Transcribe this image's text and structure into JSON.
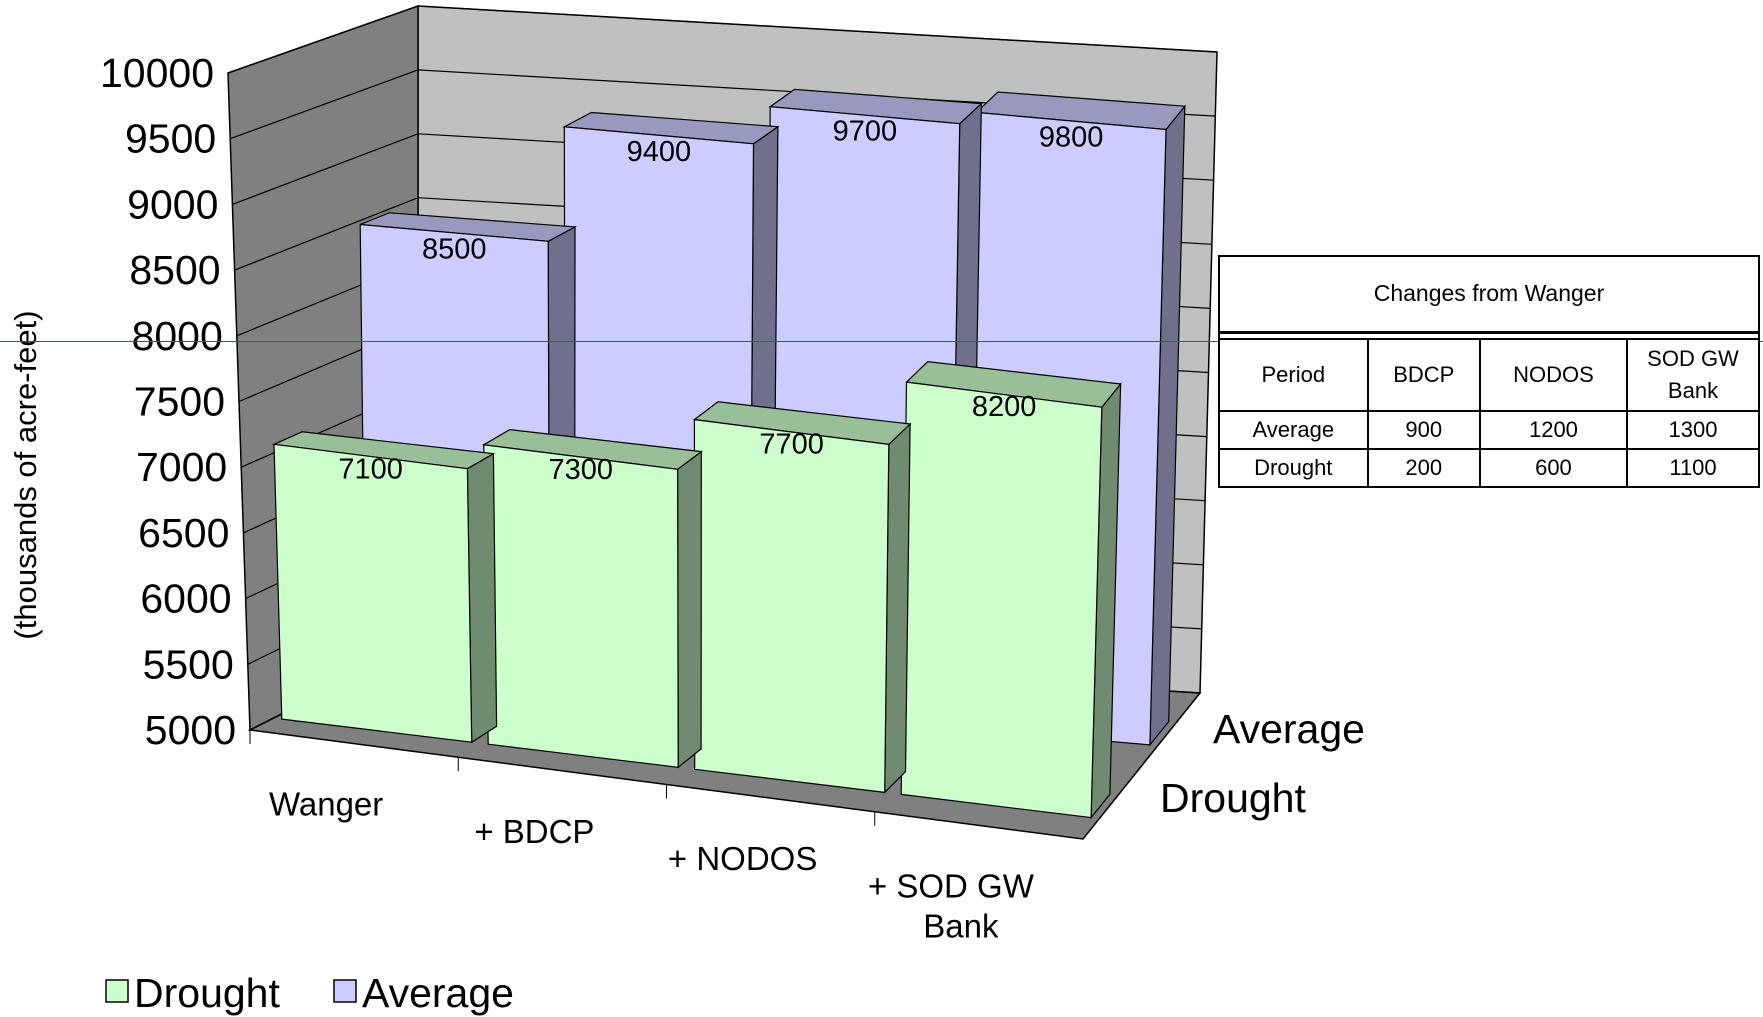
{
  "chart_data": {
    "type": "bar",
    "subtype": "3d-clustered-depth",
    "ylabel": "(thousands of acre-feet)",
    "ylim": [
      5000,
      10000
    ],
    "yticks": [
      "5000",
      "5500",
      "6000",
      "6500",
      "7000",
      "7500",
      "8000",
      "8500",
      "9000",
      "9500",
      "10000"
    ],
    "categories": [
      "Wanger",
      "+  BDCP",
      "+  NODOS",
      "+  SOD GW Bank"
    ],
    "series": [
      {
        "name": "Drought",
        "values": [
          7100,
          7300,
          7700,
          8200
        ],
        "labels": [
          "7100",
          "7300",
          "7700",
          "8200"
        ],
        "color": "#ccffcc"
      },
      {
        "name": "Average",
        "values": [
          8500,
          9400,
          9700,
          9800
        ],
        "labels": [
          "8500",
          "9400",
          "9700",
          "9800"
        ],
        "color": "#ccccff"
      }
    ],
    "depth_labels": [
      "Average",
      "Drought"
    ],
    "legend": {
      "placement": "bottom-left",
      "items": [
        "Drought",
        "Average"
      ]
    },
    "colors": {
      "back_wall": "#c0c0c0",
      "side_wall": "#808080",
      "floor": "#808080"
    }
  },
  "table": {
    "title": "Changes from Wanger",
    "headers": [
      "Period",
      "BDCP",
      "NODOS",
      "SOD GW Bank"
    ],
    "rows": [
      [
        "Average",
        "900",
        "1200",
        "1300"
      ],
      [
        "Drought",
        "200",
        "600",
        "1100"
      ]
    ]
  }
}
